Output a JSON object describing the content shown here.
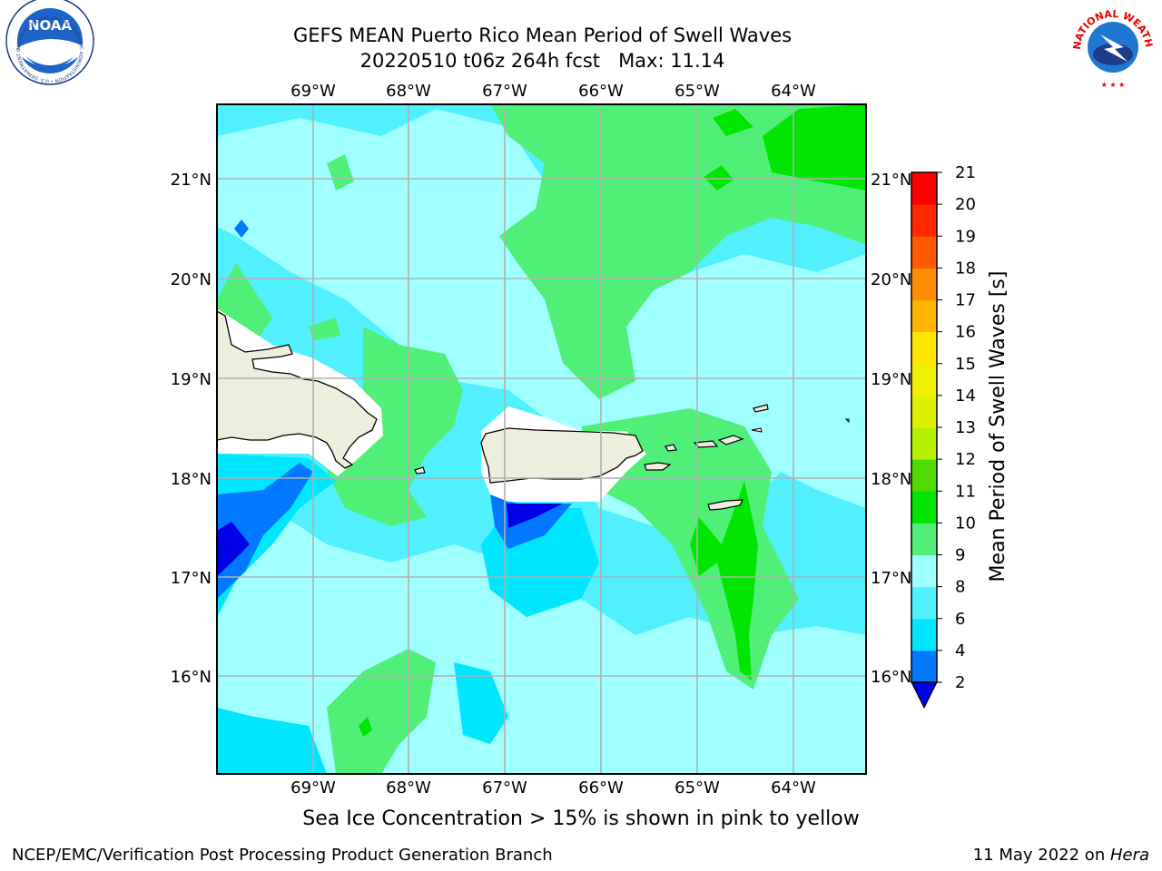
{
  "title": {
    "line1": "GEFS MEAN Puerto Rico Mean Period of Swell Waves",
    "line2": "20220510 t06z 264h fcst   Max: 11.14"
  },
  "map": {
    "lon_ticks": [
      "69°W",
      "68°W",
      "67°W",
      "66°W",
      "65°W",
      "64°W"
    ],
    "lat_ticks": [
      "21°N",
      "20°N",
      "19°N",
      "18°N",
      "17°N",
      "16°N"
    ]
  },
  "colorbar": {
    "label": "Mean Period of Swell Waves [s]",
    "ticks": [
      "2",
      "4",
      "6",
      "8",
      "9",
      "10",
      "11",
      "12",
      "13",
      "14",
      "15",
      "16",
      "17",
      "18",
      "19",
      "20",
      "21"
    ],
    "colors": [
      "#0000e6",
      "#0078ff",
      "#00e6ff",
      "#50f0ff",
      "#a0ffff",
      "#50f078",
      "#00e600",
      "#50dc00",
      "#b4f000",
      "#dcf000",
      "#f0f000",
      "#ffe600",
      "#ffb400",
      "#ff8c00",
      "#ff5a00",
      "#ff2800",
      "#ff0000"
    ]
  },
  "colors": {
    "land": "#eeeedd",
    "grid": "#b0b0b0"
  },
  "logos": {
    "noaa_text": "NOAA",
    "noaa_ring": "NATIONAL OCEANIC AND ATMOSPHERIC ADMINISTRATION • U.S. DEPARTMENT OF COMMERCE",
    "nws_ring": "NATIONAL WEATHER SERVICE"
  },
  "note": "Sea Ice Concentration > 15% is shown in pink to yellow",
  "footer": {
    "left": "NCEP/EMC/Verification Post Processing Product Generation Branch",
    "right_date": "11 May 2022 on ",
    "right_host": "Hera"
  }
}
